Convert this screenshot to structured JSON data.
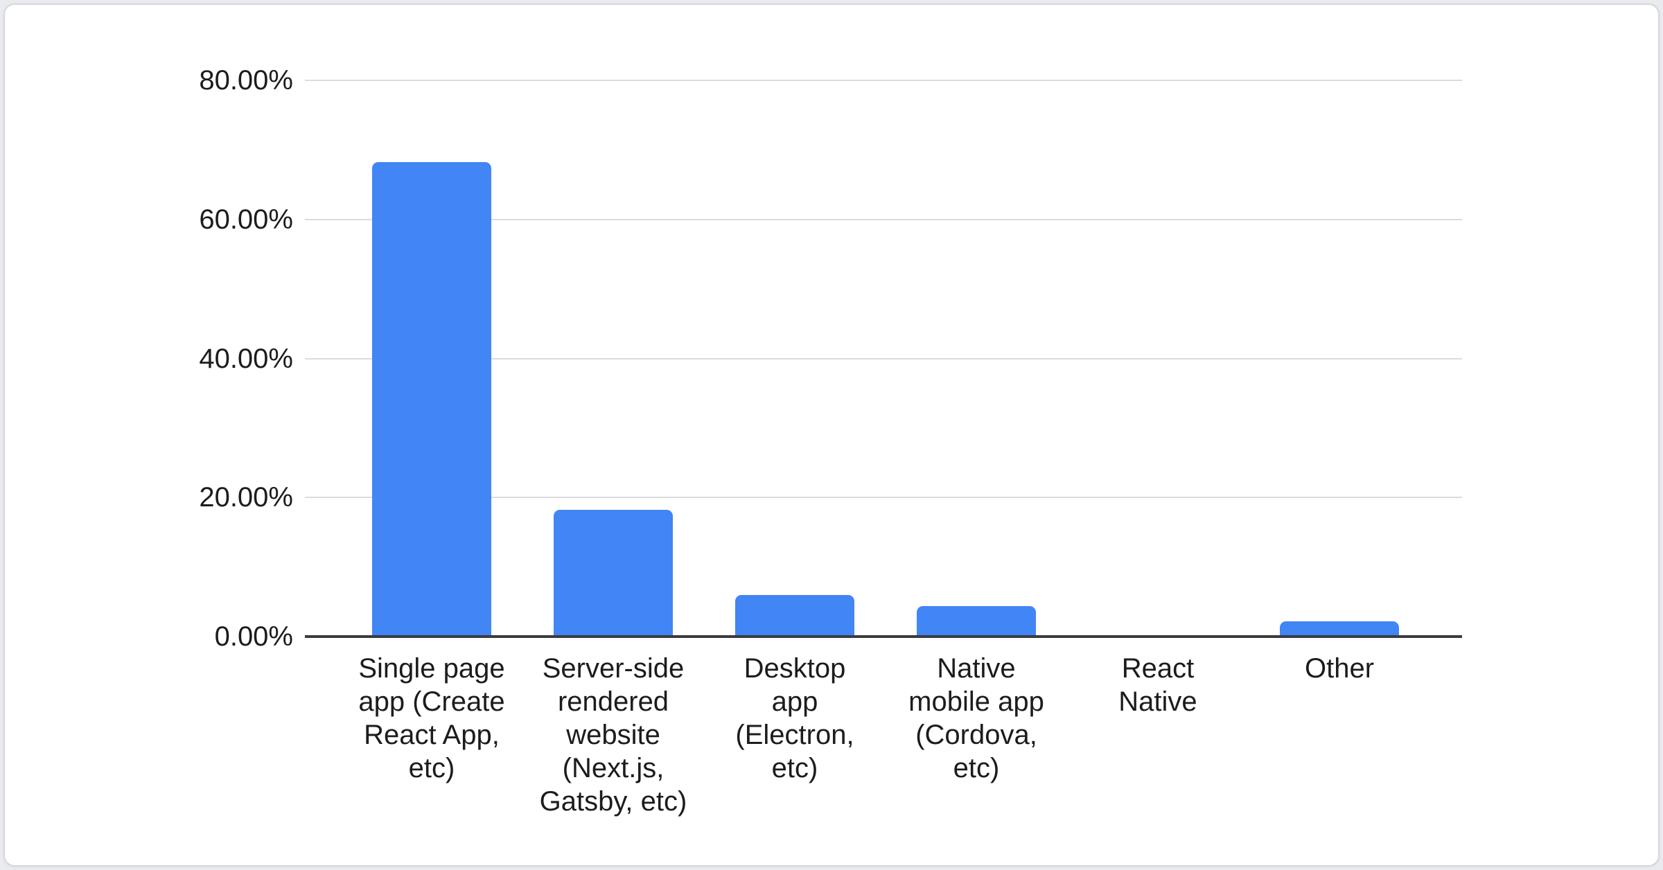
{
  "page": {
    "background": "#e9ebee",
    "card_background": "#ffffff",
    "card_border_color": "#d5d8dd"
  },
  "chart_data": {
    "type": "bar",
    "title": "",
    "xlabel": "",
    "ylabel": "",
    "categories": [
      "Single page app (Create React App, etc)",
      "Server-side rendered website (Next.js, Gatsby, etc)",
      "Desktop app (Electron, etc)",
      "Native mobile app (Cordova, etc)",
      "React Native",
      "Other"
    ],
    "category_lines": [
      [
        "Single page",
        "app (Create",
        "React App,",
        "etc)"
      ],
      [
        "Server-side",
        "rendered",
        "website",
        "(Next.js,",
        "Gatsby, etc)"
      ],
      [
        "Desktop",
        "app",
        "(Electron,",
        "etc)"
      ],
      [
        "Native",
        "mobile app",
        "(Cordova,",
        "etc)"
      ],
      [
        "React",
        "Native"
      ],
      [
        "Other"
      ]
    ],
    "values": [
      68.2,
      18.2,
      6.0,
      4.4,
      0,
      2.2
    ],
    "unit": "%",
    "ylim": [
      0,
      80
    ],
    "yticks": [
      80,
      60,
      40,
      20,
      0
    ],
    "ytick_labels": [
      "80.00%",
      "60.00%",
      "40.00%",
      "20.00%",
      "0.00%"
    ],
    "grid": true,
    "legend_position": "none",
    "bar_color": "#4285f4",
    "gridline_color": "#dcdcdc",
    "axis_line_color": "#3b3b3b",
    "text_color": "#1c1c1c"
  }
}
